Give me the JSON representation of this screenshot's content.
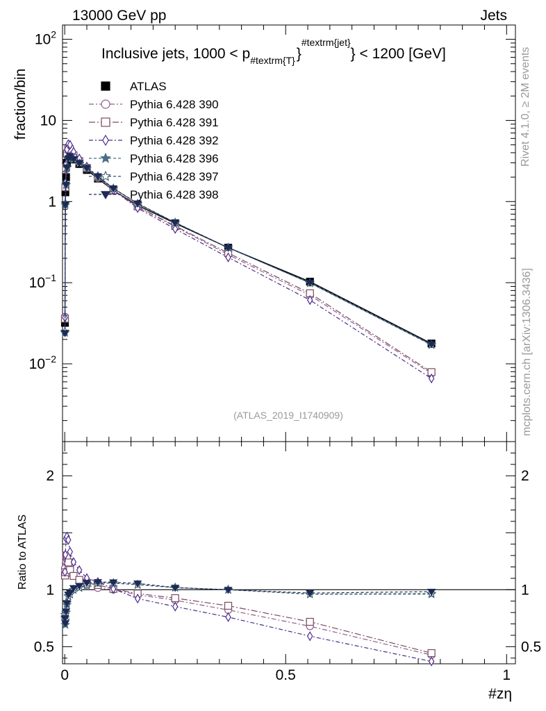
{
  "header": {
    "left": "13000 GeV pp",
    "right": "Jets",
    "side_rivet": "Rivet 4.1.0, ≥ 2M events",
    "side_mcplots": "mcplots.cern.ch [arXiv:1306.3436]"
  },
  "chart_data": {
    "type": "line",
    "title_main": "Inclusive jets, 1000 < p",
    "title_sub": "#textrm{T}",
    "title_sup": "#textrm{jet}",
    "title_tail": "} < 1200 [GeV]",
    "watermark": "(ATLAS_2019_I1740909)",
    "ylabel": "fraction/bin",
    "ratio_ylabel": "Ratio to ATLAS",
    "xlabel": "#zη",
    "yscale": "log",
    "ylim": [
      0.0011,
      150
    ],
    "ratio_ylim": [
      0.35,
      2.3
    ],
    "xlim": [
      -0.005,
      1.02
    ],
    "y_ticks": [
      {
        "value": 0.01,
        "base": "10",
        "exp": "−2"
      },
      {
        "value": 0.1,
        "base": "10",
        "exp": "−1"
      },
      {
        "value": 1,
        "label": "1"
      },
      {
        "value": 10,
        "label": "10"
      },
      {
        "value": 100,
        "base": "10",
        "exp": "2"
      }
    ],
    "ratio_ticks": [
      {
        "value": 0.5,
        "label": "0.5"
      },
      {
        "value": 1,
        "label": "1"
      },
      {
        "value": 2,
        "label": "2"
      }
    ],
    "x_ticks": [
      {
        "value": 0,
        "label": "0"
      },
      {
        "value": 0.5,
        "label": "0.5"
      },
      {
        "value": 1,
        "label": "1"
      }
    ],
    "x": [
      0.0005,
      0.0015,
      0.003,
      0.005,
      0.008,
      0.012,
      0.02,
      0.033,
      0.05,
      0.075,
      0.11,
      0.165,
      0.25,
      0.37,
      0.555,
      0.83
    ],
    "series": [
      {
        "name": "ATLAS",
        "marker": "square-filled",
        "color": "#000000",
        "dash": "",
        "values": [
          0.032,
          1.3,
          2.0,
          3.0,
          3.55,
          3.75,
          3.3,
          2.9,
          2.45,
          1.92,
          1.37,
          0.9,
          0.54,
          0.27,
          0.103,
          0.0178
        ]
      },
      {
        "name": "Pythia 6.428 390",
        "marker": "circle-open",
        "color": "#8c5f8c",
        "dash": "7,3,2,3",
        "values": [
          0.038,
          1.5,
          2.5,
          3.8,
          4.4,
          4.3,
          3.7,
          3.1,
          2.55,
          1.95,
          1.37,
          0.86,
          0.49,
          0.222,
          0.07,
          0.0076
        ]
      },
      {
        "name": "Pythia 6.428 391",
        "marker": "square-open",
        "color": "#7a4a5e",
        "dash": "9,3,2,3",
        "values": [
          0.036,
          1.5,
          2.6,
          3.9,
          4.4,
          4.4,
          3.7,
          3.15,
          2.6,
          2.0,
          1.38,
          0.87,
          0.5,
          0.232,
          0.074,
          0.0079
        ]
      },
      {
        "name": "Pythia 6.428 392",
        "marker": "diamond-open",
        "color": "#4a2a8c",
        "dash": "6,3,2,3",
        "values": [
          0.037,
          1.7,
          2.9,
          4.4,
          5.1,
          5.0,
          4.1,
          3.4,
          2.7,
          2.05,
          1.38,
          0.83,
          0.46,
          0.205,
          0.061,
          0.0066
        ]
      },
      {
        "name": "Pythia 6.428 396",
        "marker": "star-filled",
        "color": "#4a6f85",
        "dash": "4,3",
        "values": [
          0.024,
          0.9,
          1.6,
          2.6,
          3.35,
          3.6,
          3.3,
          2.95,
          2.55,
          2.03,
          1.45,
          0.94,
          0.55,
          0.27,
          0.099,
          0.0171
        ]
      },
      {
        "name": "Pythia 6.428 397",
        "marker": "star-open",
        "color": "#2e5568",
        "dash": "4,3",
        "values": [
          0.025,
          0.95,
          1.6,
          2.65,
          3.35,
          3.6,
          3.3,
          2.95,
          2.55,
          2.03,
          1.45,
          0.94,
          0.55,
          0.27,
          0.099,
          0.0172
        ]
      },
      {
        "name": "Pythia 6.428 398",
        "marker": "triangle-down-filled",
        "color": "#1e2a55",
        "dash": "4,3",
        "values": [
          0.024,
          0.92,
          1.62,
          2.65,
          3.4,
          3.65,
          3.35,
          3.0,
          2.6,
          2.05,
          1.46,
          0.95,
          0.55,
          0.27,
          0.1,
          0.0175
        ]
      }
    ]
  }
}
